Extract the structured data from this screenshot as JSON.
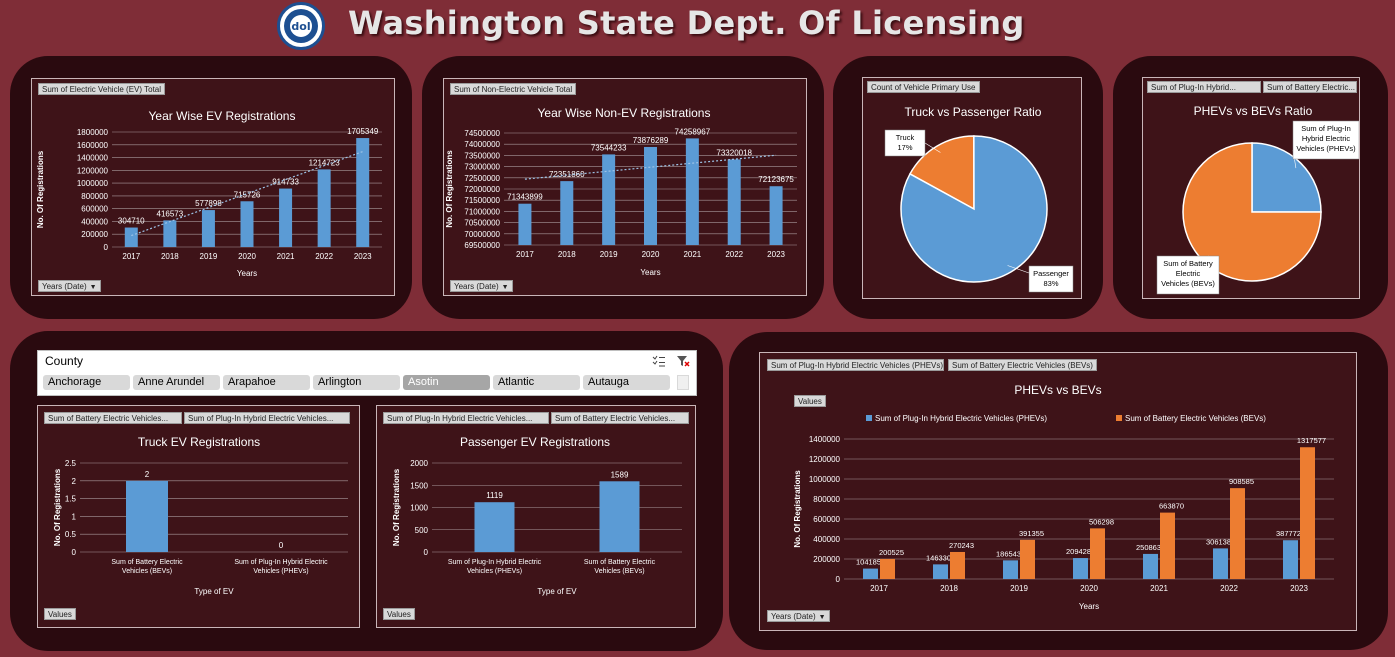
{
  "header": {
    "title": "Washington State Dept. Of Licensing",
    "logo_text": "dol"
  },
  "colors": {
    "background": "#7f2d37",
    "panel": "#2a0a0f",
    "chart_bg": "#3e1318",
    "blue": "#5b9bd5",
    "orange": "#ed7d31"
  },
  "ev_chart": {
    "field_button": "Sum of Electric Vehicle (EV) Total",
    "axis_button": "Years (Date)"
  },
  "nonev_chart": {
    "field_button": "Sum of Non-Electric Vehicle Total",
    "axis_button": "Years (Date)"
  },
  "truck_pie": {
    "field_button": "Count of Vehicle Primary Use"
  },
  "phev_pie": {
    "field_buttons": [
      "Sum of Plug-In Hybrid...",
      "Sum of Battery Electric..."
    ]
  },
  "slicer": {
    "title": "County",
    "items": [
      {
        "label": "Anchorage",
        "muted": false
      },
      {
        "label": "Anne Arundel",
        "muted": false
      },
      {
        "label": "Arapahoe",
        "muted": false
      },
      {
        "label": "Arlington",
        "muted": false
      },
      {
        "label": "Asotin",
        "muted": true
      },
      {
        "label": "Atlantic",
        "muted": false
      },
      {
        "label": "Autauga",
        "muted": false
      }
    ]
  },
  "truck_ev": {
    "field_buttons": [
      "Sum of Battery Electric Vehicles...",
      "Sum of Plug-In Hybrid Electric Vehicles..."
    ],
    "values_button": "Values"
  },
  "passenger_ev": {
    "field_buttons": [
      "Sum of Plug-In Hybrid Electric Vehicles...",
      "Sum of Battery Electric Vehicles..."
    ],
    "values_button": "Values"
  },
  "phev_bev_chart": {
    "field_buttons": [
      "Sum of Plug-In Hybrid Electric Vehicles (PHEVs)",
      "Sum of Battery Electric Vehicles (BEVs)"
    ],
    "values_button": "Values",
    "axis_button": "Years (Date)"
  },
  "chart_data": [
    {
      "id": "ev",
      "type": "bar",
      "title": "Year Wise EV Registrations",
      "xlabel": "Years",
      "ylabel": "No. Of Registrations",
      "categories": [
        "2017",
        "2018",
        "2019",
        "2020",
        "2021",
        "2022",
        "2023"
      ],
      "values": [
        304710,
        416573,
        577898,
        715726,
        914733,
        1214723,
        1705349
      ],
      "ylim": [
        0,
        1800000
      ],
      "yticks": [
        0,
        200000,
        400000,
        600000,
        800000,
        1000000,
        1200000,
        1400000,
        1600000,
        1800000
      ],
      "trendline": true,
      "data_labels": true
    },
    {
      "id": "nonev",
      "type": "bar",
      "title": "Year Wise Non-EV Registrations",
      "xlabel": "Years",
      "ylabel": "No. Of Registrations",
      "categories": [
        "2017",
        "2018",
        "2019",
        "2020",
        "2021",
        "2022",
        "2023"
      ],
      "values": [
        71343899,
        72351860,
        73544233,
        73876289,
        74258967,
        73320018,
        72123675
      ],
      "ylim": [
        69500000,
        74500000
      ],
      "yticks": [
        69500000,
        70000000,
        70500000,
        71000000,
        71500000,
        72000000,
        72500000,
        73000000,
        73500000,
        74000000,
        74500000
      ],
      "trendline": true,
      "data_labels": true
    },
    {
      "id": "truckpie",
      "type": "pie",
      "title": "Truck vs Passenger Ratio",
      "slices": [
        {
          "label": "Truck",
          "value": 17,
          "display": "17%",
          "color": "#ed7d31"
        },
        {
          "label": "Passenger",
          "value": 83,
          "display": "83%",
          "color": "#5b9bd5"
        }
      ]
    },
    {
      "id": "phevpie",
      "type": "pie",
      "title": "PHEVs vs BEVs Ratio",
      "slices": [
        {
          "label": "Sum of Plug-In Hybrid Electric Vehicles (PHEVs)",
          "value": 25,
          "color": "#5b9bd5"
        },
        {
          "label": "Sum of Battery Electric Vehicles (BEVs)",
          "value": 75,
          "color": "#ed7d31"
        }
      ]
    },
    {
      "id": "truckev",
      "type": "bar",
      "title": "Truck EV Registrations",
      "xlabel": "Type of EV",
      "ylabel": "No. Of Registrations",
      "categories": [
        "Sum of Battery Electric Vehicles (BEVs)",
        "Sum of Plug-In Hybrid Electric Vehicles (PHEVs)"
      ],
      "values": [
        2,
        0
      ],
      "ylim": [
        0,
        2.5
      ],
      "yticks": [
        0,
        0.5,
        1,
        1.5,
        2,
        2.5
      ]
    },
    {
      "id": "passev",
      "type": "bar",
      "title": "Passenger EV Registrations",
      "xlabel": "Type of EV",
      "ylabel": "No. Of Registrations",
      "categories": [
        "Sum of Plug-In Hybrid Electric Vehicles (PHEVs)",
        "Sum of Battery Electric Vehicles (BEVs)"
      ],
      "values": [
        1119,
        1589
      ],
      "ylim": [
        0,
        2000
      ],
      "yticks": [
        0,
        500,
        1000,
        1500,
        2000
      ]
    },
    {
      "id": "phevbev",
      "type": "bar",
      "title": "PHEVs vs BEVs",
      "xlabel": "Years",
      "ylabel": "No. Of Registrations",
      "categories": [
        "2017",
        "2018",
        "2019",
        "2020",
        "2021",
        "2022",
        "2023"
      ],
      "series": [
        {
          "name": "Sum of Plug-In Hybrid Electric Vehicles (PHEVs)",
          "color": "#5b9bd5",
          "values": [
            104185,
            146330,
            186543,
            209428,
            250863,
            306138,
            387772
          ]
        },
        {
          "name": "Sum of Battery Electric Vehicles (BEVs)",
          "color": "#ed7d31",
          "values": [
            200525,
            270243,
            391355,
            506298,
            663870,
            908585,
            1317577
          ]
        }
      ],
      "ylim": [
        0,
        1400000
      ],
      "yticks": [
        0,
        200000,
        400000,
        600000,
        800000,
        1000000,
        1200000,
        1400000
      ],
      "legend": "top"
    }
  ]
}
